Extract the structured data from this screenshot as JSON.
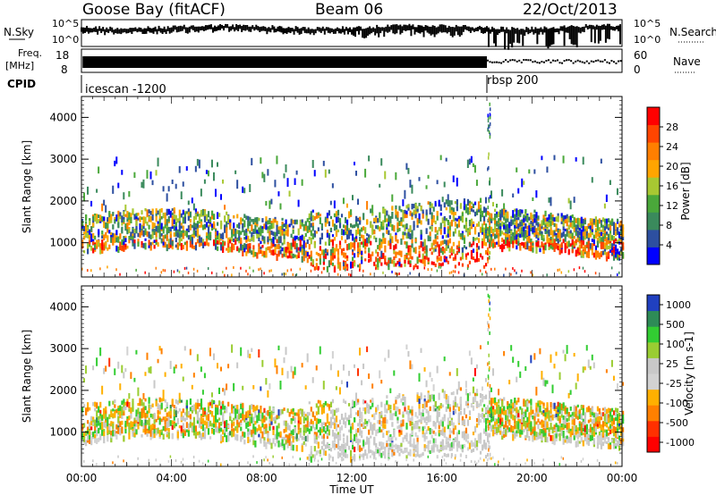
{
  "header": {
    "title": "Goose Bay (fitACF)",
    "beam": "Beam 06",
    "date": "22/Oct/2013"
  },
  "nsky_panel": {
    "label": "N.Sky",
    "right_label": "N.Search",
    "ticks_left": [
      "10^5",
      "10^0"
    ],
    "ticks_right": [
      "10^5",
      "10^0"
    ]
  },
  "freq_panel": {
    "label_top": "Freq.",
    "label_bottom": "[MHz]",
    "ticks_left": [
      "18",
      "8"
    ],
    "ticks_right": [
      "60",
      "0"
    ],
    "right_label": "Nave"
  },
  "cpid": {
    "label": "CPID",
    "segments": [
      {
        "name": "icescan -1200",
        "start_hour": 0,
        "end_hour": 18.0
      },
      {
        "name": "rbsp 200",
        "start_hour": 18.0,
        "end_hour": 24
      }
    ]
  },
  "colors": {
    "power_scale": [
      "#0000ff",
      "#2d4fa0",
      "#3a8a5c",
      "#4aa83a",
      "#a8c832",
      "#ffa500",
      "#ff7f00",
      "#ff4500",
      "#ff0000"
    ],
    "velocity_scale": [
      "#2040c0",
      "#2e8b57",
      "#32cd32",
      "#9acd32",
      "#c8c8c8",
      "#d2d2d2",
      "#ffb000",
      "#ff8000",
      "#ff3000",
      "#ff0000"
    ]
  },
  "chart_data": [
    {
      "type": "heatmap",
      "name": "Power",
      "ylabel": "Slant Range [km]",
      "xlabel": "",
      "xlim": [
        0,
        24
      ],
      "ylim": [
        180,
        4500
      ],
      "yticks": [
        "1000",
        "2000",
        "3000",
        "4000"
      ],
      "xticks": [],
      "colorbar": {
        "label": "Power [dB]",
        "ticks": [
          "4",
          "8",
          "12",
          "16",
          "20",
          "24",
          "28"
        ],
        "range": [
          0,
          30
        ]
      }
    },
    {
      "type": "heatmap",
      "name": "Velocity",
      "ylabel": "Slant Range [km]",
      "xlabel": "Time UT",
      "xlim": [
        0,
        24
      ],
      "ylim": [
        180,
        4500
      ],
      "yticks": [
        "1000",
        "2000",
        "3000",
        "4000"
      ],
      "xticks": [
        "00:00",
        "04:00",
        "08:00",
        "12:00",
        "16:00",
        "20:00",
        "00:00"
      ],
      "colorbar": {
        "label": "Velocity [m s-1]",
        "ticks": [
          "1000",
          "500",
          "100",
          "25",
          "-25",
          "-100",
          "-500",
          "-1000"
        ],
        "range": [
          -1000,
          1000
        ]
      }
    }
  ]
}
